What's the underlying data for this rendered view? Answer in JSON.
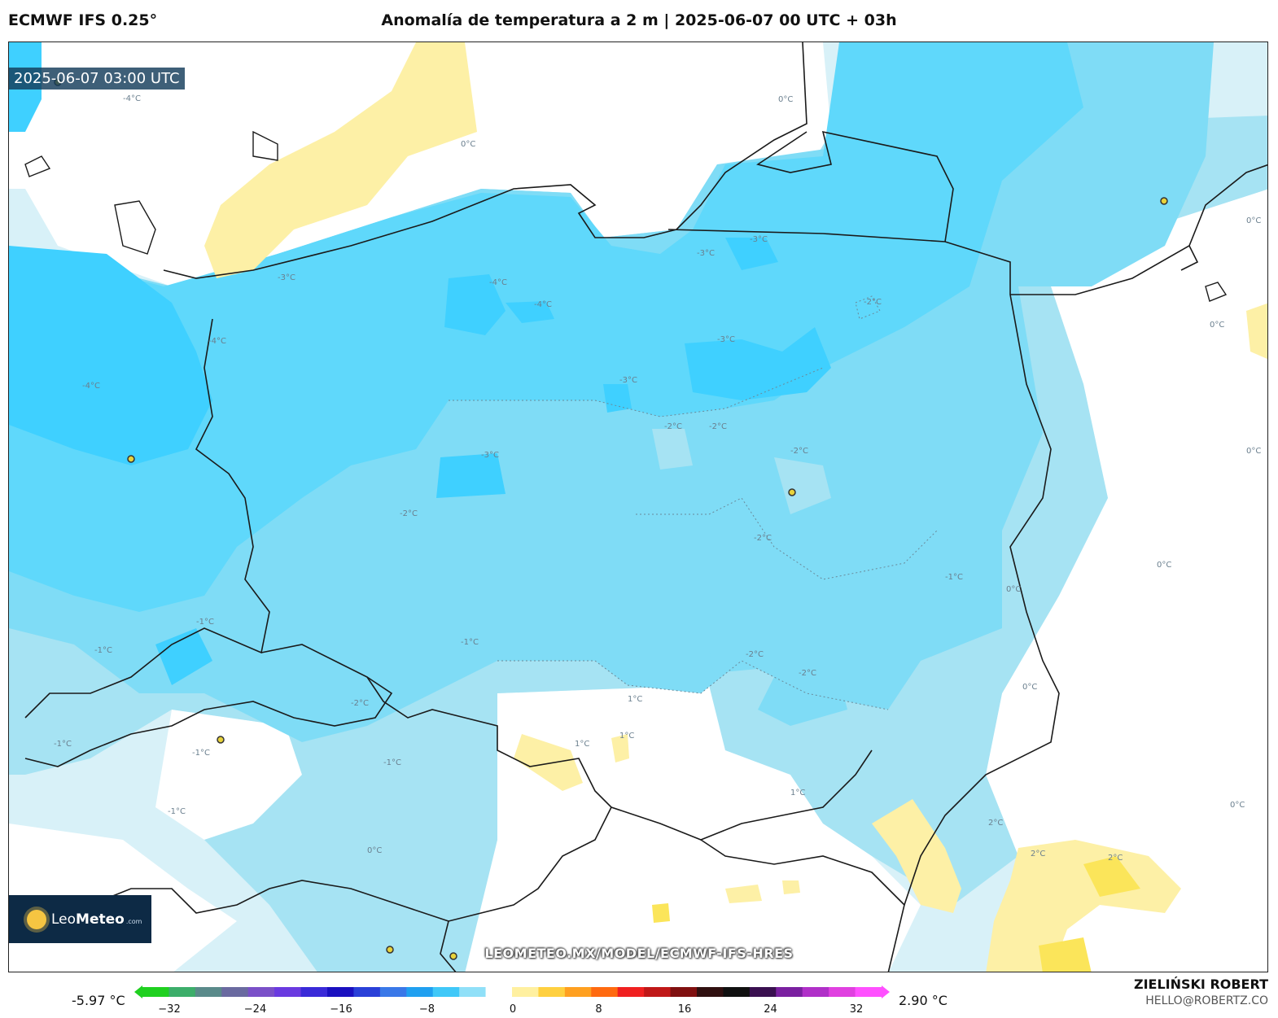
{
  "header": {
    "model": "ECMWF IFS 0.25°",
    "title": "Anomalía de temperatura a 2 m | 2025-06-07 00 UTC + 03h"
  },
  "map": {
    "valid_time": "2025-06-07 03:00 UTC",
    "watermark": "LEOMETEO.MX/MODEL/ECMWF-IFS-HRES",
    "contour_labels": [
      "-4°C",
      "-4°C",
      "-4°C",
      "-4°C",
      "-4°C",
      "-3°C",
      "-3°C",
      "-3°C",
      "-3°C",
      "-3°C",
      "-3°C",
      "-2°C",
      "-2°C",
      "-2°C",
      "-2°C",
      "-2°C",
      "-2°C",
      "-2°C",
      "-2°C",
      "-2°C",
      "-1°C",
      "-1°C",
      "-1°C",
      "-1°C",
      "-1°C",
      "-1°C",
      "-1°C",
      "-1°C",
      "0°C",
      "0°C",
      "0°C",
      "0°C",
      "0°C",
      "0°C",
      "0°C",
      "0°C",
      "0°C",
      "0°C",
      "1°C",
      "1°C",
      "1°C",
      "1°C",
      "2°C",
      "2°C",
      "2°C"
    ],
    "colors": {
      "minus4": "#3fd0ff",
      "minus3": "#5fd8fb",
      "minus2": "#7fdcf6",
      "minus1": "#a6e3f3",
      "zero": "#d8f1f8",
      "neutral": "#ffffff",
      "plus1": "#fdf0a6",
      "plus2": "#fbe55a",
      "border": "#1a1a1a",
      "city": "#e8d23a"
    }
  },
  "logo": {
    "brand_a": "Leo",
    "brand_b": "Meteo",
    "suffix": ".com"
  },
  "colorbar": {
    "min_label": "-5.97 °C",
    "max_label": "2.90 °C",
    "ticks": [
      "−32",
      "−24",
      "−16",
      "−8",
      "0",
      "8",
      "16",
      "24",
      "32"
    ],
    "colors": [
      "#1fd01f",
      "#3cae6a",
      "#5a8a8a",
      "#6a6aa0",
      "#7a50c8",
      "#6a3ae0",
      "#3a2ad8",
      "#1a10c0",
      "#2a40d8",
      "#3a78e8",
      "#20a0f0",
      "#40c8f8",
      "#90e0f8",
      "#ffffff",
      "#fff0a0",
      "#ffd040",
      "#ffa020",
      "#ff6a10",
      "#f02020",
      "#c01818",
      "#801010",
      "#301010",
      "#101010",
      "#3a1050",
      "#7a20a0",
      "#b030c8",
      "#e040e0",
      "#ff50ff"
    ]
  },
  "credits": {
    "author": "ZIELIŃSKI ROBERT",
    "email": "HELLO@ROBERTZ.CO"
  }
}
